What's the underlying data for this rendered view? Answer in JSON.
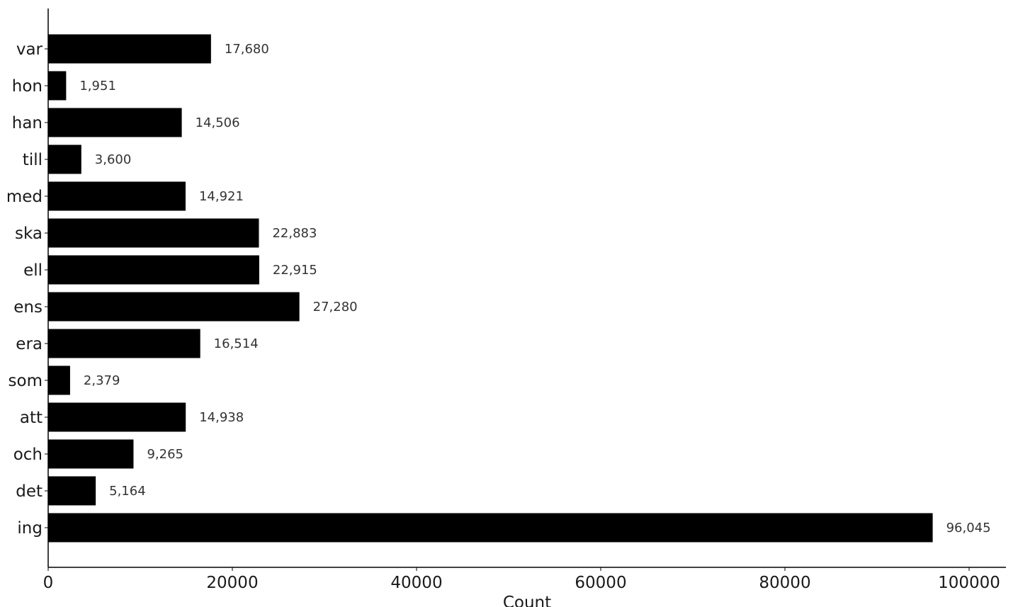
{
  "chart_data": {
    "type": "bar",
    "orientation": "horizontal",
    "categories": [
      "var",
      "hon",
      "han",
      "till",
      "med",
      "ska",
      "ell",
      "ens",
      "era",
      "som",
      "att",
      "och",
      "det",
      "ing"
    ],
    "values": [
      17680,
      1951,
      14506,
      3600,
      14921,
      22883,
      22915,
      27280,
      16514,
      2379,
      14938,
      9265,
      5164,
      96045
    ],
    "value_labels": [
      "17,680",
      "1,951",
      "14,506",
      "3,600",
      "14,921",
      "22,883",
      "22,915",
      "27,280",
      "16,514",
      "2,379",
      "14,938",
      "9,265",
      "5,164",
      "96,045"
    ],
    "xlabel": "Count",
    "ylabel": "",
    "xlim": [
      0,
      104000
    ],
    "xticks": [
      0,
      20000,
      40000,
      60000,
      80000,
      100000
    ],
    "xtick_labels": [
      "0",
      "20000",
      "40000",
      "60000",
      "80000",
      "100000"
    ],
    "grid": false,
    "bar_color": "#000000"
  }
}
